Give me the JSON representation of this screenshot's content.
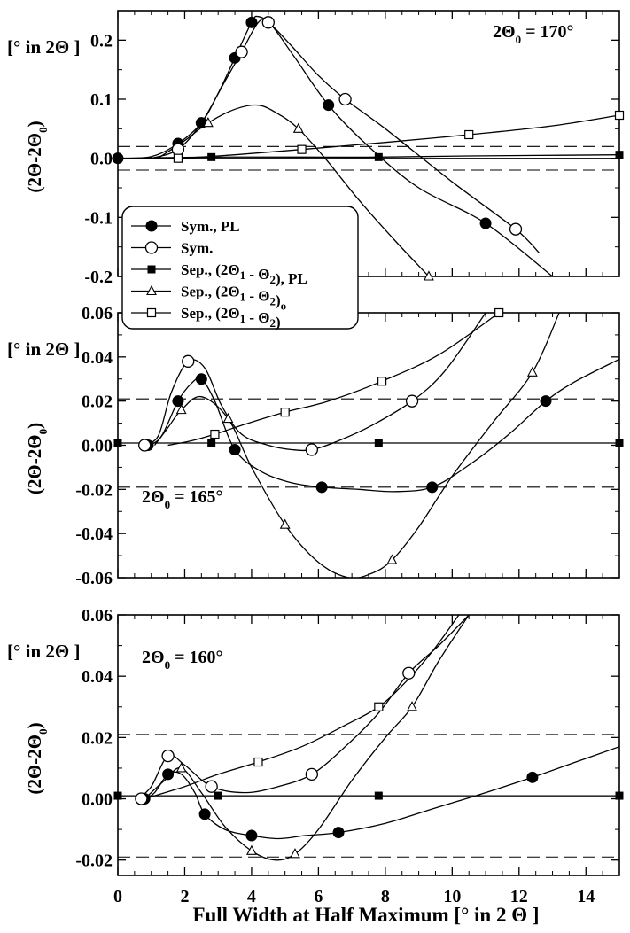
{
  "chart_data": [
    {
      "type": "line",
      "annotation": {
        "main": "2Θ",
        "sub": "0",
        "rest": " = 170°"
      },
      "unit_label": "[° in 2Θ ]",
      "ylabel": {
        "main": "(2Θ-2Θ",
        "sub": "0",
        "end": ")"
      },
      "ylim": [
        -0.2,
        0.25
      ],
      "xlim": [
        0,
        15
      ],
      "yticks": [
        0.2,
        0.1,
        0.0,
        -0.1,
        -0.2
      ],
      "ytick_labels": [
        "0.2",
        "0.1",
        "0.0",
        "-0.1",
        "-0.2"
      ],
      "show_x_tick_labels": false,
      "hlines": [
        {
          "y": 0.0,
          "style": "solid"
        },
        {
          "y": 0.02,
          "style": "dashed"
        },
        {
          "y": -0.02,
          "style": "dashed"
        }
      ],
      "series": [
        {
          "name": "Sym., PL",
          "marker": "filled-circle",
          "x": [
            0,
            1.8,
            2.5,
            3.5,
            4.0,
            6.3,
            11.0
          ],
          "y": [
            0.0,
            0.025,
            0.06,
            0.17,
            0.23,
            0.09,
            -0.11
          ],
          "curve_x": [
            0,
            1.0,
            1.8,
            2.5,
            3.0,
            3.5,
            4.0,
            4.2,
            4.6,
            5.3,
            6.3,
            7.5,
            9.0,
            11.0,
            13.0
          ],
          "curve_y": [
            0.0,
            0.003,
            0.025,
            0.06,
            0.11,
            0.17,
            0.23,
            0.24,
            0.225,
            0.17,
            0.09,
            0.02,
            -0.05,
            -0.11,
            -0.2
          ]
        },
        {
          "name": "Sym.",
          "marker": "open-circle",
          "x": [
            1.8,
            3.7,
            4.5,
            6.8,
            11.9
          ],
          "y": [
            0.015,
            0.18,
            0.23,
            0.1,
            -0.12
          ],
          "curve_x": [
            1.0,
            1.8,
            2.5,
            3.2,
            3.7,
            4.2,
            4.5,
            5.2,
            6.0,
            6.8,
            8.0,
            10.0,
            11.9,
            12.6
          ],
          "curve_y": [
            0.0,
            0.015,
            0.06,
            0.13,
            0.18,
            0.23,
            0.23,
            0.19,
            0.14,
            0.1,
            0.05,
            -0.04,
            -0.12,
            -0.16
          ]
        },
        {
          "name": "Sep., (2Θ1 - Θ2), PL",
          "marker": "filled-square",
          "x": [
            0,
            2.8,
            7.8,
            15
          ],
          "y": [
            0.0,
            0.002,
            0.002,
            0.006
          ],
          "curve_x": [
            0,
            2.8,
            5.5,
            7.8,
            10.5,
            15
          ],
          "curve_y": [
            0.0,
            0.002,
            0.002,
            0.002,
            0.004,
            0.006
          ]
        },
        {
          "name": "Sep., (2Θ1 - Θ2)o",
          "marker": "open-triangle",
          "x": [
            2.7,
            5.4,
            9.3
          ],
          "y": [
            0.06,
            0.05,
            -0.2
          ],
          "curve_x": [
            1.2,
            2.0,
            2.7,
            3.5,
            4.2,
            4.8,
            5.4,
            6.2,
            7.2,
            8.3,
            9.3,
            9.6
          ],
          "curve_y": [
            0.0,
            0.03,
            0.06,
            0.083,
            0.09,
            0.075,
            0.05,
            0.0,
            -0.07,
            -0.14,
            -0.2,
            -0.22
          ]
        },
        {
          "name": "Sep., (2Θ1 - Θ2)",
          "marker": "open-square",
          "x": [
            1.8,
            5.5,
            10.5,
            15
          ],
          "y": [
            0.0,
            0.015,
            0.04,
            0.073
          ],
          "curve_x": [
            1.0,
            1.8,
            3.5,
            5.5,
            8.0,
            10.5,
            13.0,
            15
          ],
          "curve_y": [
            0.0,
            0.0,
            0.006,
            0.015,
            0.027,
            0.04,
            0.055,
            0.073
          ]
        }
      ],
      "legend": {
        "entries": [
          {
            "marker": "filled-circle",
            "parts": [
              {
                "t": "Sym., PL"
              }
            ]
          },
          {
            "marker": "open-circle",
            "parts": [
              {
                "t": "Sym."
              }
            ]
          },
          {
            "marker": "filled-square",
            "parts": [
              {
                "t": "Sep., (2Θ"
              },
              {
                "t": "1",
                "sub": true
              },
              {
                "t": " - Θ"
              },
              {
                "t": "2",
                "sub": true
              },
              {
                "t": "), PL"
              }
            ]
          },
          {
            "marker": "open-triangle",
            "parts": [
              {
                "t": "Sep., (2Θ"
              },
              {
                "t": "1",
                "sub": true
              },
              {
                "t": " - Θ"
              },
              {
                "t": "2",
                "sub": true
              },
              {
                "t": ")"
              },
              {
                "t": "o",
                "sub": true
              }
            ]
          },
          {
            "marker": "open-square",
            "parts": [
              {
                "t": "Sep., (2Θ"
              },
              {
                "t": "1",
                "sub": true
              },
              {
                "t": " - Θ"
              },
              {
                "t": "2",
                "sub": true
              },
              {
                "t": ")"
              }
            ]
          }
        ]
      }
    },
    {
      "type": "line",
      "annotation": {
        "main": "2Θ",
        "sub": "0",
        "rest": " = 165°"
      },
      "unit_label": "[° in 2Θ ]",
      "ylabel": {
        "main": "(2Θ-2Θ",
        "sub": "0",
        "end": ")"
      },
      "ylim": [
        -0.06,
        0.06
      ],
      "xlim": [
        0,
        15
      ],
      "yticks": [
        0.06,
        0.04,
        0.02,
        0.0,
        -0.02,
        -0.04,
        -0.06
      ],
      "ytick_labels": [
        "0.06",
        "0.04",
        "0.02",
        "0.00",
        "-0.02",
        "-0.04",
        "-0.06"
      ],
      "show_x_tick_labels": false,
      "hlines": [
        {
          "y": 0.001,
          "style": "solid"
        },
        {
          "y": 0.021,
          "style": "dashed"
        },
        {
          "y": -0.019,
          "style": "dashed"
        }
      ],
      "series": [
        {
          "name": "Sym., PL",
          "marker": "filled-circle",
          "x": [
            0.9,
            1.8,
            2.5,
            3.5,
            6.1,
            9.4,
            12.8
          ],
          "y": [
            0.0,
            0.02,
            0.03,
            -0.002,
            -0.019,
            -0.019,
            0.02
          ],
          "curve_x": [
            0.7,
            0.9,
            1.3,
            1.8,
            2.2,
            2.5,
            2.9,
            3.5,
            4.3,
            5.2,
            6.1,
            7.2,
            8.3,
            9.4,
            10.5,
            11.7,
            12.8,
            13.7,
            15
          ],
          "curve_y": [
            0.0,
            0.0,
            0.004,
            0.02,
            0.028,
            0.03,
            0.02,
            -0.002,
            -0.012,
            -0.017,
            -0.019,
            -0.02,
            -0.021,
            -0.019,
            -0.009,
            0.005,
            0.02,
            0.029,
            0.039
          ]
        },
        {
          "name": "Sym.",
          "marker": "open-circle",
          "x": [
            0.8,
            2.1,
            5.8,
            8.8
          ],
          "y": [
            0.0,
            0.038,
            -0.002,
            0.02
          ],
          "curve_x": [
            0.7,
            1.2,
            1.6,
            2.1,
            2.6,
            3.1,
            3.7,
            4.5,
            5.2,
            5.8,
            6.6,
            7.6,
            8.8,
            9.8,
            11.0
          ],
          "curve_y": [
            0.0,
            0.004,
            0.024,
            0.038,
            0.035,
            0.018,
            0.005,
            0.0,
            -0.002,
            -0.002,
            0.002,
            0.009,
            0.02,
            0.034,
            0.06
          ]
        },
        {
          "name": "Sep., (2Θ1 - Θ2), PL",
          "marker": "filled-square",
          "x": [
            0,
            2.8,
            7.8,
            15
          ],
          "y": [
            0.001,
            0.001,
            0.001,
            0.001
          ],
          "curve_x": [
            0,
            15
          ],
          "curve_y": [
            0.001,
            0.001
          ]
        },
        {
          "name": "Sep., (2Θ1 - Θ2)o",
          "marker": "open-triangle",
          "x": [
            1.9,
            3.3,
            5.0,
            8.2,
            12.4
          ],
          "y": [
            0.016,
            0.012,
            -0.036,
            -0.052,
            0.033
          ],
          "curve_x": [
            1.1,
            1.5,
            1.9,
            2.5,
            3.3,
            4.0,
            5.0,
            6.0,
            6.9,
            7.6,
            8.2,
            9.0,
            10.0,
            11.2,
            12.4,
            13.2
          ],
          "curve_y": [
            0.0,
            0.008,
            0.016,
            0.022,
            0.012,
            -0.01,
            -0.036,
            -0.053,
            -0.06,
            -0.058,
            -0.052,
            -0.037,
            -0.014,
            0.01,
            0.033,
            0.06
          ]
        },
        {
          "name": "Sep., (2Θ1 - Θ2)",
          "marker": "open-square",
          "x": [
            2.9,
            5.0,
            7.9,
            11.4
          ],
          "y": [
            0.005,
            0.015,
            0.029,
            0.06
          ],
          "curve_x": [
            1.5,
            2.2,
            2.9,
            3.9,
            5.0,
            6.3,
            7.9,
            9.6,
            11.4
          ],
          "curve_y": [
            0.0,
            0.002,
            0.005,
            0.01,
            0.015,
            0.02,
            0.029,
            0.041,
            0.06
          ]
        }
      ]
    },
    {
      "type": "line",
      "annotation": {
        "main": "2Θ",
        "sub": "0",
        "rest": " = 160°"
      },
      "unit_label": "[° in 2Θ ]",
      "ylabel": {
        "main": "(2Θ-2Θ",
        "sub": "0",
        "end": ")"
      },
      "xlabel": "Full Width at Half Maximum [° in 2 Θ ]",
      "ylim": [
        -0.025,
        0.06
      ],
      "xlim": [
        0,
        15
      ],
      "yticks": [
        0.06,
        0.04,
        0.02,
        0.0,
        -0.02
      ],
      "ytick_labels": [
        "0.06",
        "0.04",
        "0.02",
        "0.00",
        "-0.02"
      ],
      "xticks": [
        0,
        2,
        4,
        6,
        8,
        10,
        12,
        14
      ],
      "xtick_labels": [
        "0",
        "2",
        "4",
        "6",
        "8",
        "10",
        "12",
        "14"
      ],
      "show_x_tick_labels": true,
      "hlines": [
        {
          "y": 0.001,
          "style": "solid"
        },
        {
          "y": 0.021,
          "style": "dashed"
        },
        {
          "y": -0.019,
          "style": "dashed"
        }
      ],
      "series": [
        {
          "name": "Sym., PL",
          "marker": "filled-circle",
          "x": [
            0.8,
            1.5,
            2.6,
            4.0,
            6.6,
            12.4
          ],
          "y": [
            0.0,
            0.008,
            -0.005,
            -0.012,
            -0.011,
            0.007
          ],
          "curve_x": [
            0.6,
            0.8,
            1.1,
            1.5,
            1.9,
            2.3,
            2.6,
            3.2,
            4.0,
            4.8,
            5.6,
            6.6,
            8.0,
            9.5,
            11.0,
            12.4,
            13.7,
            15
          ],
          "curve_y": [
            0.0,
            0.0,
            0.002,
            0.008,
            0.008,
            0.002,
            -0.005,
            -0.01,
            -0.012,
            -0.013,
            -0.012,
            -0.011,
            -0.008,
            -0.003,
            0.002,
            0.007,
            0.012,
            0.017
          ]
        },
        {
          "name": "Sym.",
          "marker": "open-circle",
          "x": [
            0.7,
            1.5,
            2.8,
            5.8,
            8.7
          ],
          "y": [
            0.0,
            0.014,
            0.004,
            0.008,
            0.041
          ],
          "curve_x": [
            0.6,
            1.0,
            1.5,
            2.0,
            2.8,
            3.8,
            4.8,
            5.8,
            6.8,
            7.8,
            8.7,
            9.6,
            10.5
          ],
          "curve_y": [
            0.0,
            0.004,
            0.014,
            0.011,
            0.004,
            0.002,
            0.004,
            0.008,
            0.017,
            0.028,
            0.041,
            0.05,
            0.06
          ]
        },
        {
          "name": "Sep., (2Θ1 - Θ2), PL",
          "marker": "filled-square",
          "x": [
            0,
            3.0,
            7.8,
            15
          ],
          "y": [
            0.001,
            0.001,
            0.001,
            0.001
          ],
          "curve_x": [
            0,
            15
          ],
          "curve_y": [
            0.001,
            0.001
          ]
        },
        {
          "name": "Sep., (2Θ1 - Θ2)o",
          "marker": "open-triangle",
          "x": [
            1.9,
            4.0,
            5.3,
            8.8
          ],
          "y": [
            0.01,
            -0.017,
            -0.018,
            0.03
          ],
          "curve_x": [
            0.8,
            1.4,
            1.9,
            2.5,
            3.2,
            4.0,
            4.7,
            5.3,
            6.0,
            7.0,
            8.0,
            8.8,
            9.6,
            10.5
          ],
          "curve_y": [
            0.0,
            0.006,
            0.01,
            0.002,
            -0.009,
            -0.017,
            -0.02,
            -0.018,
            -0.01,
            0.006,
            0.02,
            0.03,
            0.045,
            0.06
          ]
        },
        {
          "name": "Sep., (2Θ1 - Θ2)",
          "marker": "open-square",
          "x": [
            4.2,
            7.8
          ],
          "y": [
            0.012,
            0.03
          ],
          "curve_x": [
            0.8,
            2.0,
            3.0,
            4.2,
            5.5,
            6.8,
            7.8,
            8.6,
            9.4,
            10.2
          ],
          "curve_y": [
            0.0,
            0.004,
            0.008,
            0.012,
            0.017,
            0.024,
            0.03,
            0.038,
            0.048,
            0.06
          ]
        }
      ]
    }
  ]
}
